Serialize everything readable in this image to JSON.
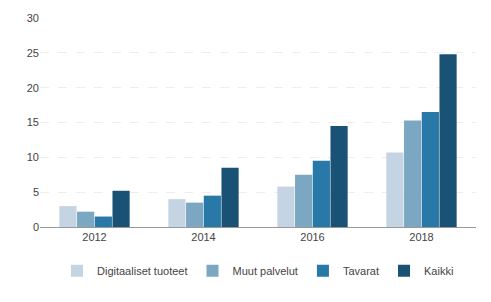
{
  "chart_data": {
    "type": "bar",
    "categories": [
      "2012",
      "2014",
      "2016",
      "2018"
    ],
    "series": [
      {
        "name": "Digitaaliset tuoteet",
        "color": "#c5d4e3",
        "values": [
          3.0,
          4.0,
          5.8,
          10.7
        ]
      },
      {
        "name": "Muut palvelut",
        "color": "#7ba7c2",
        "values": [
          2.2,
          3.5,
          7.5,
          15.3
        ]
      },
      {
        "name": "Tavarat",
        "color": "#2878a8",
        "values": [
          1.5,
          4.5,
          9.5,
          16.5
        ]
      },
      {
        "name": "Kaikki",
        "color": "#1a5276",
        "values": [
          5.2,
          8.5,
          14.5,
          24.8
        ]
      }
    ],
    "ylim": [
      0,
      30
    ],
    "yticks": [
      0,
      5,
      10,
      15,
      20,
      25,
      30
    ],
    "grid": true,
    "legend": "bottom"
  }
}
